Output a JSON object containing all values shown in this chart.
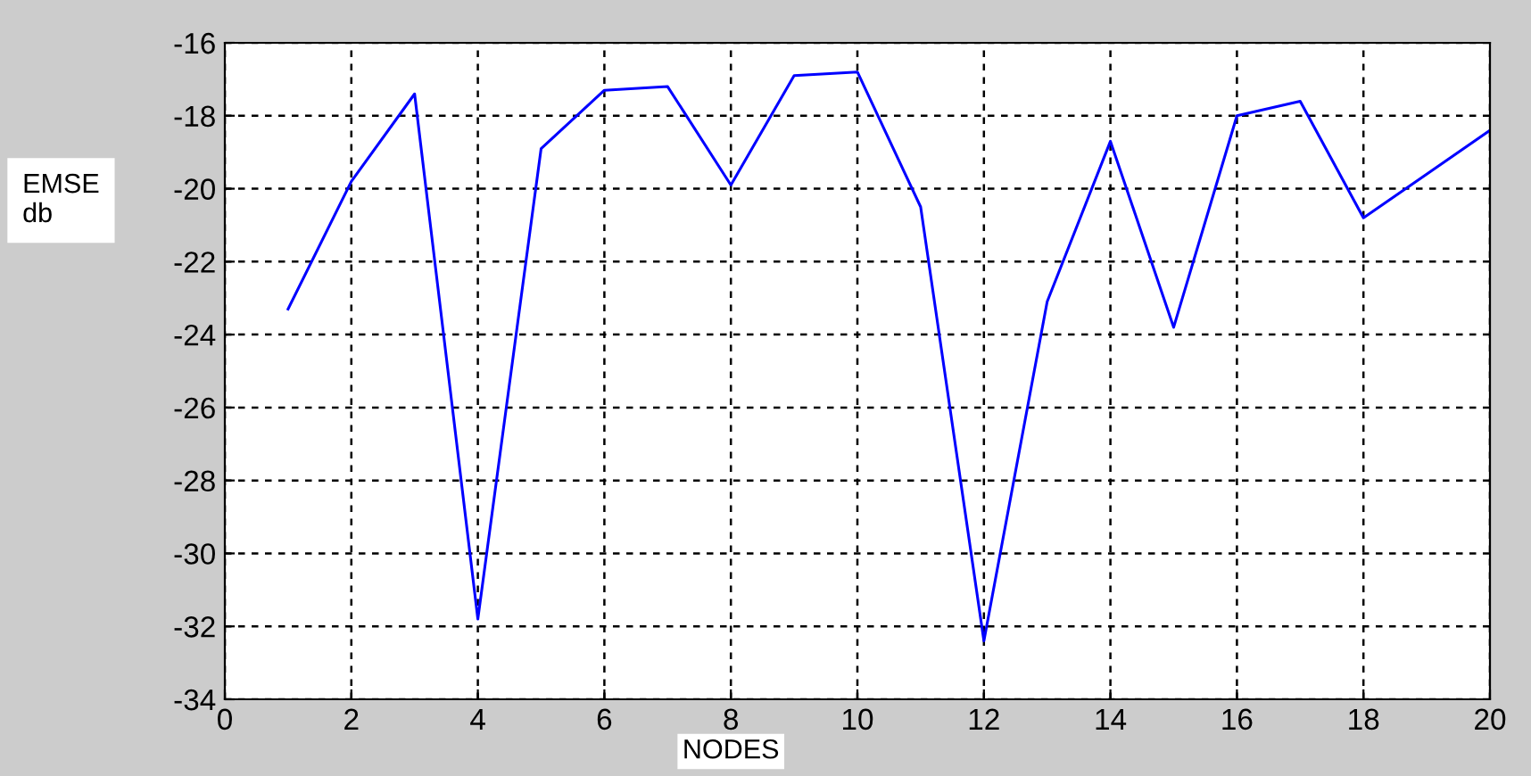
{
  "chart_data": {
    "type": "line",
    "xlabel": "NODES",
    "ylabel": "EMSE\ndb",
    "x": [
      1,
      2,
      3,
      4,
      5,
      6,
      7,
      8,
      9,
      10,
      11,
      12,
      13,
      14,
      15,
      16,
      17,
      18,
      19,
      20
    ],
    "series": [
      {
        "color": "#0000ff",
        "values": [
          -23.3,
          -19.8,
          -17.4,
          -31.8,
          -18.9,
          -17.3,
          -17.2,
          -19.9,
          -16.9,
          -16.8,
          -20.5,
          -32.4,
          -23.1,
          -18.7,
          -23.8,
          -18.0,
          -17.6,
          -20.8,
          -19.6,
          -18.4
        ]
      }
    ],
    "xlim": [
      0,
      20
    ],
    "xticks": [
      0,
      2,
      4,
      6,
      8,
      10,
      12,
      14,
      16,
      18,
      20
    ],
    "ylim": [
      -34,
      -16
    ],
    "yticks": [
      -34,
      -32,
      -30,
      -28,
      -26,
      -24,
      -22,
      -20,
      -18,
      -16
    ],
    "grid": true,
    "line_style": "solid",
    "marker": "none"
  }
}
